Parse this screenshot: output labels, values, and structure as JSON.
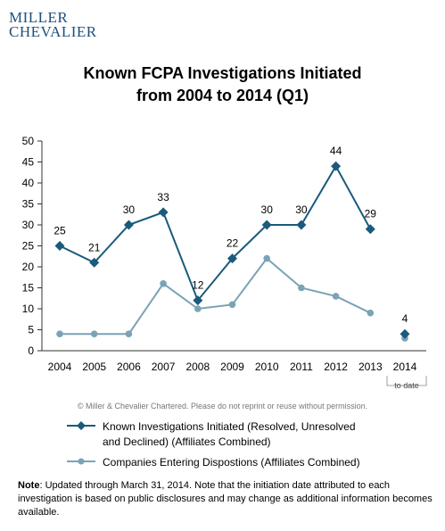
{
  "logo": {
    "line1": "MILLER",
    "line2": "CHEVALIER"
  },
  "title_line1": "Known FCPA Investigations Initiated",
  "title_line2": "from 2004 to 2014 (Q1)",
  "copyright": "© Miller & Chevalier Chartered. Please do not reprint or reuse without permission.",
  "note_label": "Note",
  "note_text": ": Updated through March 31, 2014. Note that the initiation date attributed to each investigation is based on public disclosures and may change as additional information becomes available.",
  "colors": {
    "series1": "#1a5a7c",
    "series2": "#7aa3b6",
    "axis": "#333333"
  },
  "chart_data": {
    "type": "line",
    "title": "Known FCPA Investigations Initiated from 2004 to 2014 (Q1)",
    "categories": [
      "2004",
      "2005",
      "2006",
      "2007",
      "2008",
      "2009",
      "2010",
      "2011",
      "2012",
      "2013",
      "2014"
    ],
    "category_sublabels": [
      "",
      "",
      "",
      "",
      "",
      "",
      "",
      "",
      "",
      "",
      "to date"
    ],
    "ylim": [
      0,
      50
    ],
    "yticks": [
      0,
      5,
      10,
      15,
      20,
      25,
      30,
      35,
      40,
      45,
      50
    ],
    "grid": false,
    "legend_position": "bottom",
    "series": [
      {
        "name": "Known Investigations Initiated (Resolved, Unresolved and Declined) (Affiliates Combined)",
        "legend_line1": "Known Investigations Initiated (Resolved, Unresolved",
        "legend_line2": "and Declined) (Affiliates Combined)",
        "values": [
          25,
          21,
          30,
          33,
          12,
          22,
          30,
          30,
          44,
          29,
          4
        ],
        "data_labels": [
          "25",
          "21",
          "30",
          "33",
          "12",
          "22",
          "30",
          "30",
          "44",
          "29",
          "4"
        ],
        "segment_break_before_index": 10,
        "marker": "diamond"
      },
      {
        "name": "Companies Entering Dispostions (Affiliates Combined)",
        "legend_line1": "Companies Entering Dispostions (Affiliates Combined)",
        "values": [
          4,
          4,
          4,
          16,
          10,
          11,
          22,
          15,
          13,
          9,
          3
        ],
        "segment_break_before_index": 10,
        "marker": "circle"
      }
    ]
  }
}
